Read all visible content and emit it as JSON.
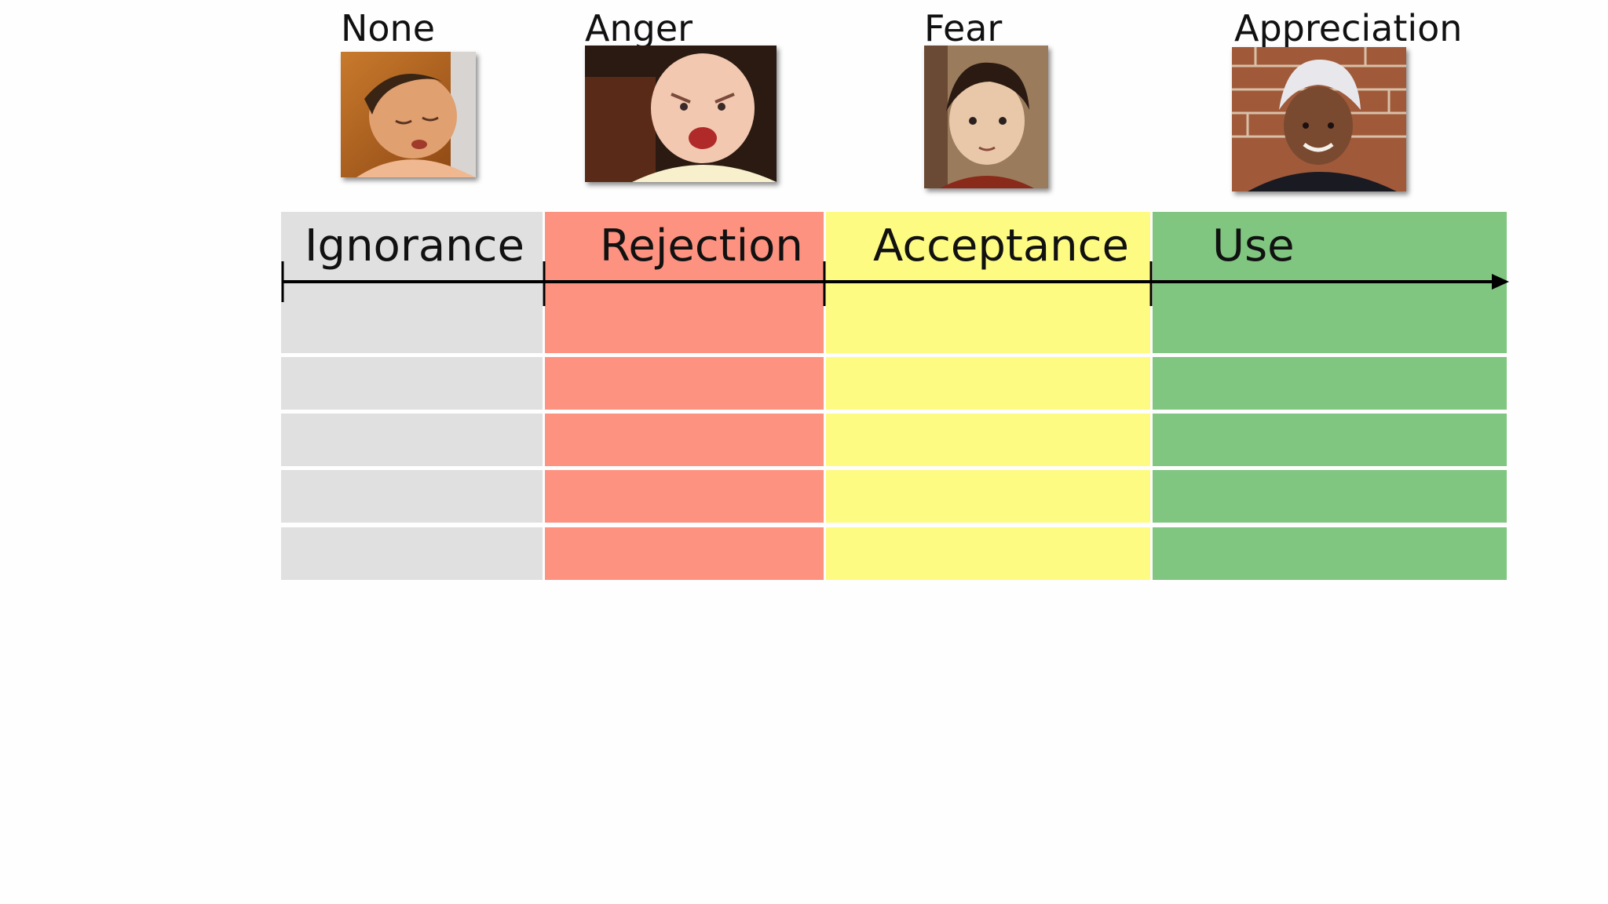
{
  "emotions": [
    "None",
    "Anger",
    "Fear",
    "Appreciation"
  ],
  "stages": [
    "Ignorance",
    "Rejection",
    "Acceptance",
    "Use"
  ],
  "colors": {
    "ignorance": "#e0e0e0",
    "rejection": "#fd9280",
    "acceptance": "#fefb82",
    "use": "#80c680",
    "background": "#fefefe",
    "axis": "#000000"
  },
  "photos": [
    "sleeping-child-photo",
    "angry-baby-photo",
    "worried-boy-photo",
    "smiling-girl-photo"
  ]
}
